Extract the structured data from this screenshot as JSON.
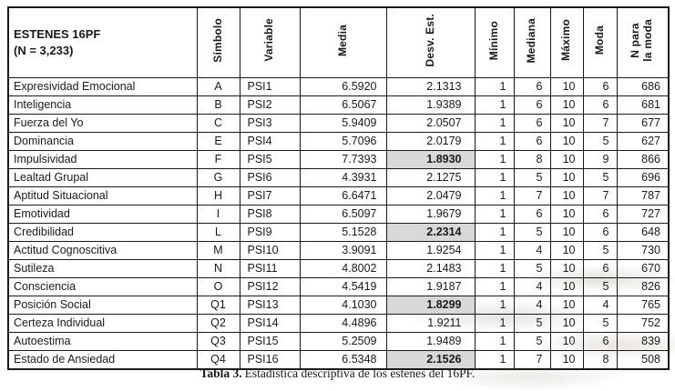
{
  "table": {
    "title_line1": "ESTENES 16PF",
    "title_line2": "(N = 3,233)",
    "columns": [
      "Símbolo",
      "Variable",
      "Media",
      "Desv. Est.",
      "Mínimo",
      "Mediana",
      "Máximo",
      "Moda",
      "N para\nla moda"
    ],
    "rows": [
      {
        "label": "Expresividad Emocional",
        "simbolo": "A",
        "variable": "PSI1",
        "media": "6.5920",
        "desv": "2.1313",
        "min": "1",
        "mediana": "6",
        "max": "10",
        "moda": "6",
        "n_moda": "686",
        "desv_highlight": false
      },
      {
        "label": "Inteligencia",
        "simbolo": "B",
        "variable": "PSI2",
        "media": "6.5067",
        "desv": "1.9389",
        "min": "1",
        "mediana": "6",
        "max": "10",
        "moda": "6",
        "n_moda": "681",
        "desv_highlight": false
      },
      {
        "label": "Fuerza del Yo",
        "simbolo": "C",
        "variable": "PSI3",
        "media": "5.9409",
        "desv": "2.0507",
        "min": "1",
        "mediana": "6",
        "max": "10",
        "moda": "7",
        "n_moda": "677",
        "desv_highlight": false
      },
      {
        "label": "Dominancia",
        "simbolo": "E",
        "variable": "PSI4",
        "media": "5.7096",
        "desv": "2.0179",
        "min": "1",
        "mediana": "6",
        "max": "10",
        "moda": "5",
        "n_moda": "627",
        "desv_highlight": false
      },
      {
        "label": "Impulsividad",
        "simbolo": "F",
        "variable": "PSI5",
        "media": "7.7393",
        "desv": "1.8930",
        "min": "1",
        "mediana": "8",
        "max": "10",
        "moda": "9",
        "n_moda": "866",
        "desv_highlight": true
      },
      {
        "label": "Lealtad Grupal",
        "simbolo": "G",
        "variable": "PSI6",
        "media": "4.3931",
        "desv": "2.1275",
        "min": "1",
        "mediana": "5",
        "max": "10",
        "moda": "5",
        "n_moda": "696",
        "desv_highlight": false
      },
      {
        "label": "Aptitud Situacional",
        "simbolo": "H",
        "variable": "PSI7",
        "media": "6.6471",
        "desv": "2.0479",
        "min": "1",
        "mediana": "7",
        "max": "10",
        "moda": "7",
        "n_moda": "787",
        "desv_highlight": false
      },
      {
        "label": "Emotividad",
        "simbolo": "I",
        "variable": "PSI8",
        "media": "6.5097",
        "desv": "1.9679",
        "min": "1",
        "mediana": "6",
        "max": "10",
        "moda": "6",
        "n_moda": "727",
        "desv_highlight": false
      },
      {
        "label": "Credibilidad",
        "simbolo": "L",
        "variable": "PSI9",
        "media": "5.1528",
        "desv": "2.2314",
        "min": "1",
        "mediana": "5",
        "max": "10",
        "moda": "6",
        "n_moda": "648",
        "desv_highlight": true
      },
      {
        "label": "Actitud Cognoscitiva",
        "simbolo": "M",
        "variable": "PSI10",
        "media": "3.9091",
        "desv": "1.9254",
        "min": "1",
        "mediana": "4",
        "max": "10",
        "moda": "5",
        "n_moda": "730",
        "desv_highlight": false
      },
      {
        "label": "Sutileza",
        "simbolo": "N",
        "variable": "PSI11",
        "media": "4.8002",
        "desv": "2.1483",
        "min": "1",
        "mediana": "5",
        "max": "10",
        "moda": "6",
        "n_moda": "670",
        "desv_highlight": false
      },
      {
        "label": "Consciencia",
        "simbolo": "O",
        "variable": "PSI12",
        "media": "4.5419",
        "desv": "1.9187",
        "min": "1",
        "mediana": "4",
        "max": "10",
        "moda": "5",
        "n_moda": "826",
        "desv_highlight": false
      },
      {
        "label": "Posición Social",
        "simbolo": "Q1",
        "variable": "PSI13",
        "media": "4.1030",
        "desv": "1.8299",
        "min": "1",
        "mediana": "4",
        "max": "10",
        "moda": "4",
        "n_moda": "765",
        "desv_highlight": true
      },
      {
        "label": "Certeza Individual",
        "simbolo": "Q2",
        "variable": "PSI14",
        "media": "4.4896",
        "desv": "1.9211",
        "min": "1",
        "mediana": "5",
        "max": "10",
        "moda": "5",
        "n_moda": "752",
        "desv_highlight": false
      },
      {
        "label": "Autoestima",
        "simbolo": "Q3",
        "variable": "PSI15",
        "media": "5.2509",
        "desv": "1.9489",
        "min": "1",
        "mediana": "5",
        "max": "10",
        "moda": "6",
        "n_moda": "839",
        "desv_highlight": false
      },
      {
        "label": "Estado de Ansiedad",
        "simbolo": "Q4",
        "variable": "PSI16",
        "media": "6.5348",
        "desv": "2.1526",
        "min": "1",
        "mediana": "7",
        "max": "10",
        "moda": "8",
        "n_moda": "508",
        "desv_highlight": true
      }
    ]
  },
  "caption": {
    "bold": "Tabla 3.",
    "text": "Estadística descriptiva de los estenes del 16PF."
  },
  "colors": {
    "highlight_cell": "#d8d8d8",
    "border": "#1a1a1a",
    "background": "#ffffff"
  }
}
